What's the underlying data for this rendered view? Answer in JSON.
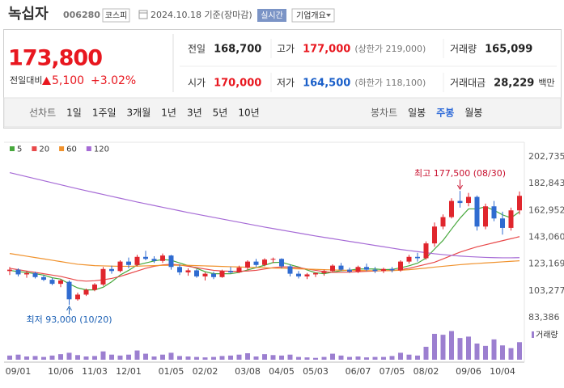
{
  "header": {
    "name": "녹십자",
    "code": "006280",
    "market": "코스피",
    "date": "2024.10.18 기준(장마감)",
    "realtime": "실시간",
    "company": "기업개요"
  },
  "summary": {
    "price": "173,800",
    "change_label": "전일대비",
    "change": "5,100",
    "change_rate": "+3.02%",
    "color": "#e8171f",
    "items": [
      {
        "label": "전일",
        "value": "168,700"
      },
      {
        "label": "고가",
        "value": "177,000",
        "note": "(상한가 219,000)",
        "color": "#e8171f"
      },
      {
        "label": "거래량",
        "value": "165,099"
      },
      {
        "label": "시가",
        "value": "170,000",
        "color": "#e8171f"
      },
      {
        "label": "저가",
        "value": "164,500",
        "note": "(하한가 118,100)",
        "color": "#1a5fc9"
      },
      {
        "label": "거래대금",
        "value": "28,229",
        "unit": "백만"
      }
    ]
  },
  "tabs": {
    "line_label": "선차트",
    "line": [
      "1일",
      "1주일",
      "3개월",
      "1년",
      "3년",
      "5년",
      "10년"
    ],
    "candle_label": "봉차트",
    "candle": [
      "일봉",
      "주봉",
      "월봉"
    ],
    "active": "주봉"
  },
  "chart_data": {
    "type": "candlestick",
    "grid": false,
    "up_color": "#e0262d",
    "down_color": "#2f6bd0",
    "categories": [
      null,
      "09/01",
      null,
      null,
      null,
      null,
      "10/06",
      null,
      null,
      null,
      "11/03",
      null,
      null,
      null,
      "12/01",
      null,
      null,
      null,
      null,
      "01/05",
      null,
      null,
      null,
      "02/02",
      null,
      null,
      null,
      null,
      "03/08",
      null,
      null,
      null,
      "04/05",
      null,
      null,
      null,
      "05/03",
      null,
      null,
      null,
      null,
      "06/07",
      null,
      null,
      null,
      "07/05",
      null,
      null,
      null,
      "08/02",
      null,
      null,
      null,
      null,
      "09/06",
      null,
      null,
      null,
      "10/04",
      null,
      null
    ],
    "open": [
      118000,
      119000,
      115500,
      116500,
      113500,
      111500,
      108500,
      110000,
      97000,
      100500,
      104000,
      108000,
      119500,
      118000,
      125000,
      122500,
      128500,
      127000,
      125500,
      129500,
      121000,
      117000,
      118500,
      114000,
      116000,
      113500,
      118000,
      117000,
      120500,
      125000,
      122500,
      126500,
      127000,
      121500,
      116000,
      114000,
      115500,
      116500,
      118000,
      122000,
      119000,
      117500,
      121000,
      119000,
      118000,
      119500,
      118500,
      125000,
      128500,
      127500,
      138500,
      151000,
      158000,
      170000,
      168500,
      173000,
      151000,
      166000,
      157000,
      150000,
      163000
    ],
    "high": [
      121000,
      120000,
      118000,
      117500,
      115000,
      113000,
      112000,
      111000,
      102000,
      105000,
      109000,
      121000,
      122000,
      126000,
      128000,
      130000,
      133000,
      129000,
      131000,
      130000,
      123000,
      120000,
      119500,
      117000,
      117500,
      119000,
      121000,
      122000,
      126000,
      127000,
      127500,
      128000,
      127500,
      123000,
      118000,
      116500,
      117000,
      119000,
      123000,
      124000,
      120500,
      122000,
      123500,
      121000,
      120500,
      121000,
      126000,
      130000,
      131500,
      140000,
      154000,
      160000,
      172000,
      177500,
      176000,
      174000,
      168000,
      170000,
      162000,
      165000,
      177000
    ],
    "low": [
      115000,
      114000,
      113000,
      112500,
      110500,
      107500,
      106000,
      93000,
      96000,
      99500,
      103000,
      107000,
      116000,
      117000,
      120000,
      121500,
      126000,
      124000,
      124000,
      119000,
      115000,
      114500,
      113000,
      111000,
      112000,
      113000,
      116000,
      116500,
      119000,
      121000,
      121500,
      124000,
      120000,
      114000,
      112500,
      112000,
      113500,
      114500,
      117000,
      118000,
      116500,
      116500,
      118000,
      116500,
      116500,
      117000,
      117500,
      123500,
      125000,
      126500,
      136000,
      149000,
      157000,
      165000,
      166000,
      148000,
      149000,
      155000,
      145000,
      148000,
      160000
    ],
    "close": [
      119000,
      115500,
      116500,
      113500,
      111500,
      108500,
      111000,
      97000,
      100500,
      104000,
      108000,
      119500,
      118000,
      125000,
      122500,
      128500,
      127000,
      125500,
      129500,
      121000,
      117000,
      118500,
      114000,
      116000,
      113500,
      118000,
      117000,
      120500,
      125000,
      122500,
      126500,
      127000,
      121500,
      116000,
      114000,
      115500,
      116500,
      118000,
      122000,
      119000,
      117500,
      121000,
      119000,
      118000,
      119500,
      118500,
      125000,
      128500,
      127500,
      138500,
      151000,
      158000,
      170000,
      168500,
      173000,
      151000,
      166000,
      157000,
      150000,
      163000,
      173800
    ],
    "ylim": [
      83386,
      202735
    ],
    "yticks": [
      {
        "value": 83386,
        "label": "83,386"
      },
      {
        "value": 103277,
        "label": "103,277"
      },
      {
        "value": 123169,
        "label": "123,169"
      },
      {
        "value": 143060,
        "label": "143,060"
      },
      {
        "value": 162952,
        "label": "162,952"
      },
      {
        "value": 182843,
        "label": "182,843"
      },
      {
        "value": 202735,
        "label": "202,735"
      }
    ],
    "ma": [
      {
        "name": "5",
        "color": "#47a83c",
        "values": [
          118500,
          117500,
          117000,
          116000,
          115000,
          113000,
          112000,
          108500,
          105500,
          104000,
          104000,
          106000,
          110000,
          115000,
          118500,
          122500,
          124000,
          125500,
          126500,
          126000,
          124000,
          122000,
          120000,
          117500,
          116000,
          116000,
          116000,
          117000,
          118800,
          120500,
          122300,
          124300,
          124500,
          122700,
          121000,
          118800,
          116700,
          116000,
          117200,
          118200,
          118600,
          119500,
          119500,
          119500,
          119000,
          119200,
          120400,
          121900,
          123800,
          127600,
          134300,
          140700,
          149100,
          157200,
          164100,
          164100,
          165700,
          163100,
          159700,
          157400,
          162000
        ]
      },
      {
        "name": "20",
        "color": "#e8494a",
        "values": [
          120000,
          119000,
          118000,
          117000,
          116000,
          115000,
          114000,
          112500,
          111000,
          110500,
          110800,
          111500,
          112500,
          114000,
          116000,
          118000,
          120000,
          121500,
          122500,
          123000,
          122500,
          121500,
          120500,
          119500,
          118500,
          118000,
          117800,
          117800,
          118000,
          118500,
          119500,
          120500,
          121000,
          121000,
          120500,
          119500,
          118500,
          117500,
          117000,
          117000,
          117200,
          117500,
          117800,
          118000,
          118200,
          118400,
          119000,
          120000,
          121500,
          123000,
          124500,
          127000,
          129500,
          132000,
          134000,
          136000,
          137500,
          139000,
          140500,
          142000,
          143500
        ]
      },
      {
        "name": "60",
        "color": "#f0922d",
        "values": [
          131000,
          130000,
          129000,
          128000,
          127000,
          126000,
          125000,
          124000,
          123000,
          122500,
          122000,
          121800,
          121600,
          121500,
          121500,
          121600,
          121800,
          122000,
          122200,
          122300,
          122300,
          122200,
          122000,
          121800,
          121600,
          121400,
          121200,
          121000,
          120800,
          120600,
          120400,
          120200,
          120000,
          119800,
          119600,
          119400,
          119200,
          119000,
          118800,
          118600,
          118500,
          118400,
          118300,
          118200,
          118200,
          118300,
          118600,
          119000,
          119600,
          120200,
          120900,
          121500,
          122100,
          122700,
          123200,
          123600,
          124000,
          124400,
          124800,
          125200,
          125600
        ]
      },
      {
        "name": "120",
        "color": "#a66bd6",
        "values": [
          191000,
          189500,
          188000,
          186500,
          185000,
          183500,
          182000,
          180500,
          179000,
          177600,
          176200,
          174800,
          173400,
          172000,
          170600,
          169200,
          167900,
          166600,
          165300,
          164000,
          162700,
          161400,
          160200,
          159000,
          157800,
          156600,
          155400,
          154200,
          153000,
          151800,
          150600,
          149500,
          148400,
          147300,
          146200,
          145100,
          144000,
          143000,
          142000,
          141000,
          140000,
          139000,
          138000,
          137000,
          136000,
          135000,
          134000,
          133200,
          132400,
          131600,
          130800,
          130200,
          129600,
          129100,
          128700,
          128400,
          128100,
          127900,
          127800,
          127800,
          127900
        ]
      }
    ],
    "volume": {
      "name": "거래량",
      "color": "#9c7fd0",
      "ylim": [
        0,
        700000
      ],
      "values": [
        90000,
        110000,
        70000,
        80000,
        60000,
        90000,
        120000,
        150000,
        100000,
        70000,
        80000,
        180000,
        110000,
        90000,
        110000,
        200000,
        130000,
        70000,
        110000,
        150000,
        80000,
        70000,
        60000,
        50000,
        60000,
        80000,
        90000,
        110000,
        140000,
        70000,
        120000,
        100000,
        90000,
        110000,
        60000,
        50000,
        40000,
        60000,
        130000,
        90000,
        60000,
        70000,
        50000,
        60000,
        60000,
        80000,
        150000,
        110000,
        90000,
        280000,
        560000,
        540000,
        620000,
        470000,
        500000,
        350000,
        300000,
        440000,
        310000,
        250000,
        380000
      ]
    },
    "annotations": [
      {
        "text": "최고 177,500 (08/30)",
        "value": 177500,
        "color": "#c8102e"
      },
      {
        "text": "최저 93,000 (10/20)",
        "value": 93000,
        "color": "#1a5fb4"
      }
    ]
  }
}
